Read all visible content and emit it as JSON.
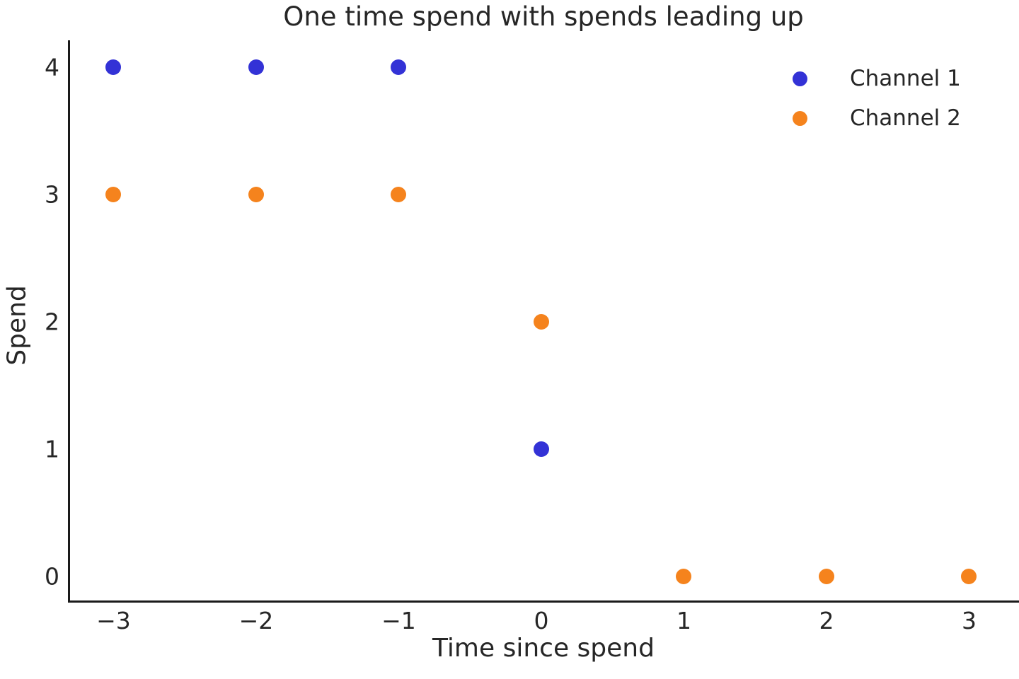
{
  "chart_data": {
    "type": "scatter",
    "title": "One time spend with spends leading up",
    "xlabel": "Time since spend",
    "ylabel": "Spend",
    "xlim": [
      -3.32,
      3.35
    ],
    "ylim": [
      -0.19,
      4.21
    ],
    "xticks": {
      "values": [
        -3,
        -2,
        -1,
        0,
        1,
        2,
        3
      ],
      "labels": [
        "−3",
        "−2",
        "−1",
        "0",
        "1",
        "2",
        "3"
      ]
    },
    "yticks": {
      "values": [
        0,
        1,
        2,
        3,
        4
      ],
      "labels": [
        "0",
        "1",
        "2",
        "3",
        "4"
      ]
    },
    "grid": false,
    "legend_position": "upper right",
    "series": [
      {
        "name": "Channel 1",
        "color": "#3332d6",
        "points": [
          [
            -3,
            4
          ],
          [
            -2,
            4
          ],
          [
            -1,
            4
          ],
          [
            0,
            1
          ]
        ]
      },
      {
        "name": "Channel 2",
        "color": "#f5831d",
        "points": [
          [
            -3,
            3
          ],
          [
            -2,
            3
          ],
          [
            -1,
            3
          ],
          [
            0,
            2
          ],
          [
            1,
            0
          ],
          [
            2,
            0
          ],
          [
            3,
            0
          ]
        ]
      }
    ]
  },
  "colors": {
    "text": "#262626",
    "spine": "#1a1a1a",
    "background": "#ffffff",
    "channel1": "#3332d6",
    "channel2": "#f5831d"
  }
}
